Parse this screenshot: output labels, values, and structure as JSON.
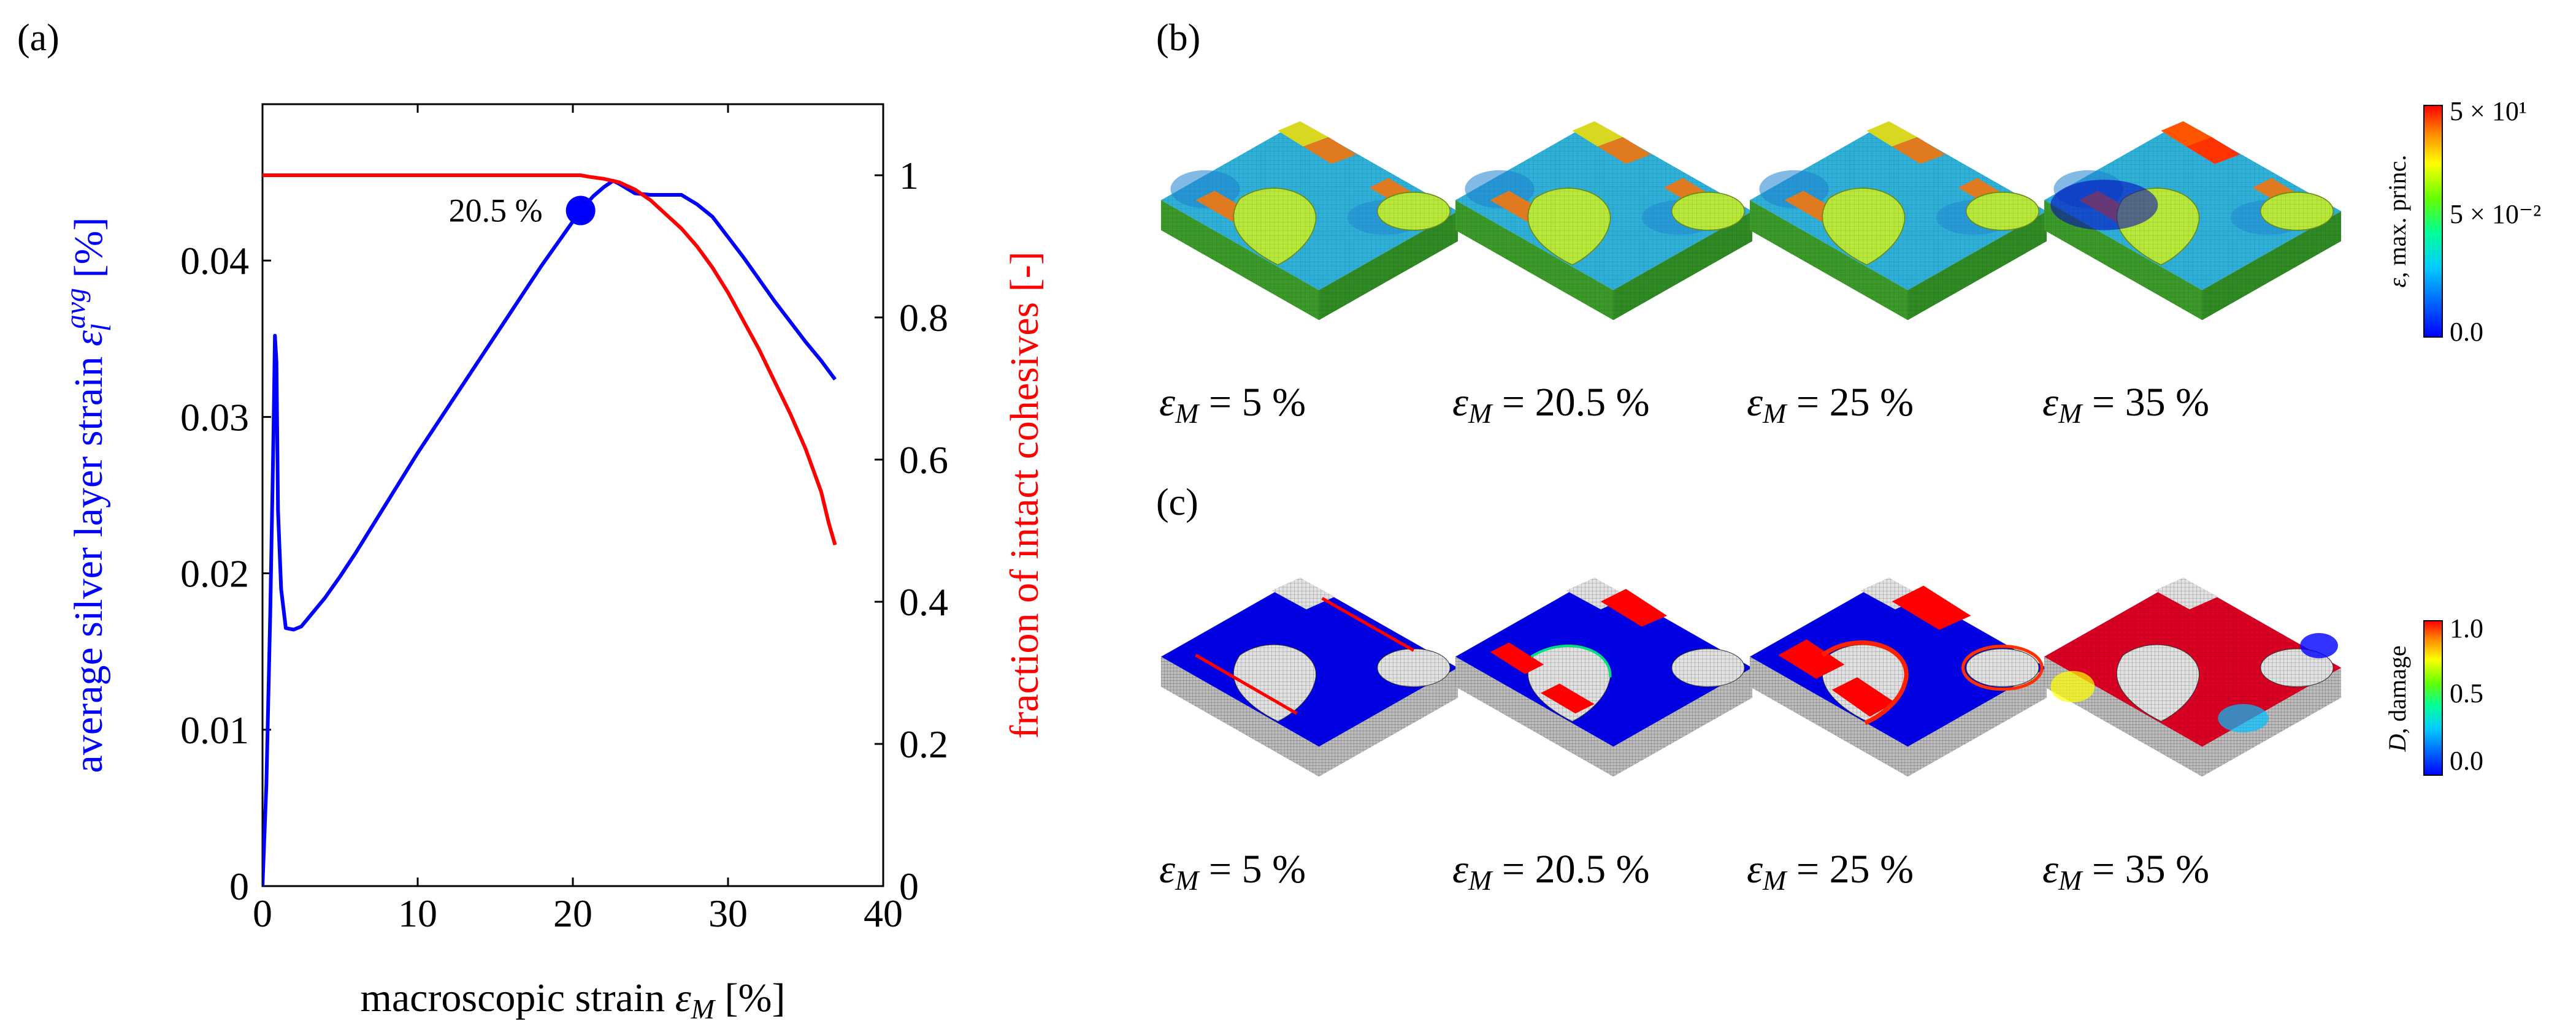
{
  "panels": {
    "a": {
      "label": "(a)"
    },
    "b": {
      "label": "(b)"
    },
    "c": {
      "label": "(c)"
    }
  },
  "chart_data": {
    "type": "line",
    "xlabel": "macroscopic strain εM [%]",
    "xlabel_main": "macroscopic strain ",
    "xlabel_symbol": "ε",
    "xlabel_sub": "M",
    "xlabel_unit": " [%]",
    "ylabel_left": "average silver layer strain εl^avg [%]",
    "ylabel_left_main": "average silver layer strain ",
    "ylabel_left_symbol": "ε",
    "ylabel_left_sub": "l",
    "ylabel_left_sup": "avg",
    "ylabel_left_unit": " [%]",
    "ylabel_right": "fraction of intact cohesives [-]",
    "xlim": [
      0,
      40
    ],
    "ylim_left": [
      0,
      0.05
    ],
    "ylim_right": [
      0,
      1.1
    ],
    "xticks": [
      0,
      10,
      20,
      30,
      40
    ],
    "yticks_left": [
      0,
      0.01,
      0.02,
      0.03,
      0.04
    ],
    "yticks_left_labels": [
      "0",
      "0.01",
      "0.02",
      "0.03",
      "0.04"
    ],
    "yticks_right": [
      0,
      0.2,
      0.4,
      0.6,
      0.8,
      1
    ],
    "yticks_right_labels": [
      "0",
      "0.2",
      "0.4",
      "0.6",
      "0.8",
      "1"
    ],
    "series": [
      {
        "name": "average silver layer strain",
        "axis": "left",
        "color": "#0000ff",
        "x": [
          0,
          0.25,
          0.5,
          0.7,
          0.8,
          0.9,
          1.0,
          1.2,
          1.5,
          2.0,
          2.5,
          3.0,
          4.0,
          5.0,
          6.0,
          8.0,
          10.0,
          12.0,
          14.0,
          16.0,
          18.0,
          19.5,
          20.5,
          21.3,
          22.0,
          22.6,
          23.0,
          24.0,
          25.0,
          26.0,
          27.0,
          28.0,
          29.0,
          30.0,
          31.0,
          32.0,
          33.0,
          34.0,
          35.0,
          36.0,
          36.9
        ],
        "y": [
          0.0,
          0.0065,
          0.0175,
          0.0285,
          0.0352,
          0.0335,
          0.024,
          0.019,
          0.0165,
          0.0164,
          0.0166,
          0.0172,
          0.0184,
          0.0198,
          0.0213,
          0.0245,
          0.0277,
          0.0307,
          0.0337,
          0.0367,
          0.0397,
          0.0418,
          0.0432,
          0.0441,
          0.0447,
          0.0451,
          0.0449,
          0.0443,
          0.0442,
          0.0442,
          0.0442,
          0.0436,
          0.0428,
          0.0415,
          0.0402,
          0.0388,
          0.0374,
          0.0361,
          0.0348,
          0.0336,
          0.0324
        ]
      },
      {
        "name": "fraction of intact cohesives",
        "axis": "right",
        "color": "#ff0000",
        "x": [
          0,
          5,
          10,
          15,
          20,
          20.5,
          21.0,
          22.0,
          23.0,
          24.0,
          25.0,
          26.0,
          27.0,
          28.0,
          29.0,
          30.0,
          31.0,
          32.0,
          33.0,
          34.0,
          35.0,
          36.0,
          36.5,
          36.9
        ],
        "y": [
          1.0,
          1.0,
          1.0,
          1.0,
          1.0,
          1.0,
          0.998,
          0.995,
          0.99,
          0.98,
          0.965,
          0.945,
          0.925,
          0.9,
          0.87,
          0.835,
          0.795,
          0.755,
          0.71,
          0.665,
          0.615,
          0.555,
          0.51,
          0.48
        ]
      }
    ],
    "annotations": [
      {
        "text": "20.5 %",
        "x": 20.5,
        "y": 0.0432,
        "axis": "left",
        "marker": "filled-circle",
        "color": "#0000ff"
      }
    ]
  },
  "panel_b": {
    "colorbar": {
      "title": "ε, max. princ.",
      "title_symbol": "ε",
      "title_rest": ", max. princ.",
      "colors": [
        "#0000ff",
        "#0055ff",
        "#00aaff",
        "#00ffff",
        "#00ff80",
        "#80ff00",
        "#c0ff00",
        "#ffff00",
        "#ffaa00",
        "#ff5500",
        "#ff0000"
      ],
      "tick_labels": [
        "5 × 10¹",
        "5 × 10⁻²",
        "0.0"
      ]
    },
    "images": [
      {
        "caption": "εM = 5 %",
        "symbol": "ε",
        "sub": "M",
        "rest": " = 5 %"
      },
      {
        "caption": "εM = 20.5 %",
        "symbol": "ε",
        "sub": "M",
        "rest": " = 20.5 %"
      },
      {
        "caption": "εM = 25 %",
        "symbol": "ε",
        "sub": "M",
        "rest": " = 25 %"
      },
      {
        "caption": "εM = 35 %",
        "symbol": "ε",
        "sub": "M",
        "rest": " = 35 %"
      }
    ]
  },
  "panel_c": {
    "colorbar": {
      "title": "D, damage",
      "title_symbol": "D",
      "title_rest": ", damage",
      "colors": [
        "#0000ff",
        "#0055ff",
        "#00aaff",
        "#00ffff",
        "#00ff80",
        "#80ff00",
        "#c0ff00",
        "#ffff00",
        "#ffaa00",
        "#ff5500",
        "#ff0000"
      ],
      "tick_labels": [
        "1.0",
        "0.5",
        "0.0"
      ]
    },
    "images": [
      {
        "caption": "εM = 5 %",
        "symbol": "ε",
        "sub": "M",
        "rest": " = 5 %"
      },
      {
        "caption": "εM = 20.5 %",
        "symbol": "ε",
        "sub": "M",
        "rest": " = 20.5 %"
      },
      {
        "caption": "εM = 25 %",
        "symbol": "ε",
        "sub": "M",
        "rest": " = 25 %"
      },
      {
        "caption": "εM = 35 %",
        "symbol": "ε",
        "sub": "M",
        "rest": " = 35 %"
      }
    ]
  }
}
